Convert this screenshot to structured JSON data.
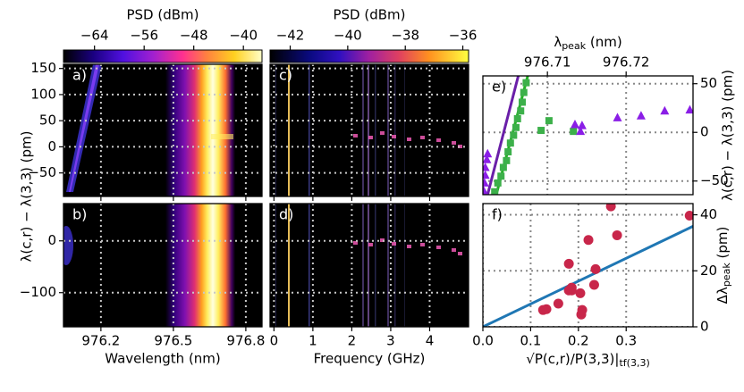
{
  "shared_ylabel": "λ(c,r) − λ(3,3) (pm)",
  "chart_data": [
    {
      "type": "heatmap",
      "panel": "a)",
      "xaxis": "none",
      "yaxis": "left",
      "colorbar": {
        "label": "PSD (dBm)",
        "lim": [
          -69,
          -37
        ],
        "ticks": [
          {
            "value": -64,
            "label": "−64"
          },
          {
            "value": -56,
            "label": "−56"
          },
          {
            "value": -48,
            "label": "−48"
          },
          {
            "value": -40,
            "label": "−40"
          }
        ]
      },
      "xlim": [
        976.045,
        976.867
      ],
      "xticks": [
        976.2,
        976.5,
        976.8
      ],
      "ylim": [
        -95,
        158
      ],
      "yticks": [
        {
          "value": -50,
          "label": "−50"
        },
        0,
        50,
        100,
        150
      ]
    },
    {
      "type": "heatmap",
      "panel": "b)",
      "xaxis": "bottom",
      "yaxis": "left",
      "xlabel": "Wavelength (nm)",
      "xlim": [
        976.045,
        976.867
      ],
      "xticks": [
        976.2,
        976.5,
        976.8
      ],
      "ylim": [
        -166,
        72
      ],
      "yticks": [
        {
          "value": -100,
          "label": "−100"
        },
        0
      ]
    },
    {
      "type": "heatmap",
      "panel": "c)",
      "xaxis": "none",
      "yaxis": "none",
      "colorbar": {
        "label": "PSD (dBm)",
        "lim": [
          -42.7,
          -35.8
        ],
        "ticks": [
          {
            "value": -42,
            "label": "−42"
          },
          {
            "value": -40,
            "label": "−40"
          },
          {
            "value": -38,
            "label": "−38"
          },
          {
            "value": -36,
            "label": "−36"
          }
        ]
      },
      "xlim": [
        -0.1,
        5.0
      ],
      "xticks": [
        0,
        1,
        2,
        3,
        4
      ],
      "ylim": [
        -95,
        158
      ],
      "yticks": [
        -50,
        0,
        50,
        100,
        150
      ]
    },
    {
      "type": "heatmap",
      "panel": "d)",
      "xaxis": "bottom",
      "yaxis": "none",
      "xlabel": "Frequency (GHz)",
      "xlim": [
        -0.1,
        5.0
      ],
      "xticks": [
        0,
        1,
        2,
        3,
        4
      ],
      "ylim": [
        -166,
        72
      ],
      "yticks": [
        -100,
        0
      ]
    },
    {
      "type": "scatter",
      "panel": "e)",
      "xaxis": "top",
      "yaxis": "right",
      "xlabel": {
        "main": "λ",
        "sub": "peak",
        "tail": " (nm)"
      },
      "ylabel": "λ(c,r) − λ(3,3) (pm)",
      "xlim": [
        976.7018,
        976.7285
      ],
      "xticks": [
        976.71,
        976.72
      ],
      "ylim": [
        -64,
        58
      ],
      "yticks": [
        {
          "value": -50,
          "label": "−50"
        },
        0,
        50
      ],
      "grid": true,
      "series": [
        {
          "marker": "line",
          "color": "#22b022",
          "x": [
            976.7035,
            976.7075
          ],
          "values": [
            -64,
            58
          ]
        },
        {
          "marker": "line",
          "color": "#6a1fa8",
          "x": [
            976.7024,
            976.7063
          ],
          "values": [
            -64,
            58
          ]
        },
        {
          "marker": "square",
          "color": "#3cb04a",
          "x": [
            976.7033,
            976.7037,
            976.7041,
            976.7044,
            976.7048,
            976.705,
            976.7053,
            976.7057,
            976.706,
            976.7062,
            976.7066,
            976.7068,
            976.707,
            976.7073,
            976.7092,
            976.7102,
            976.7133
          ],
          "values": [
            -61,
            -52,
            -45,
            -36,
            -29,
            -20,
            -11,
            -3,
            5,
            14,
            22,
            31,
            41,
            51,
            2,
            12,
            1
          ]
        },
        {
          "marker": "triangle",
          "color": "#8a1ee6",
          "x": [
            976.7019,
            976.702,
            976.7021,
            976.7021,
            976.7023,
            976.7024,
            976.7135,
            976.7142,
            976.7144,
            976.7189,
            976.7219,
            976.7249,
            976.7281
          ],
          "values": [
            -60,
            -52,
            -44,
            -36,
            -28,
            -22,
            8,
            1,
            7,
            15,
            17,
            22,
            23
          ]
        }
      ]
    },
    {
      "type": "scatter",
      "panel": "f)",
      "xaxis": "bottom",
      "yaxis": "right",
      "xlabel": {
        "main": "√P(c,r)/P(3,3)|",
        "sub": "tf(3,3)"
      },
      "ylabel": {
        "main": "Δλ",
        "sub": "peak",
        "tail": " (pm)"
      },
      "xlim": [
        0,
        0.44
      ],
      "xticks": [
        {
          "value": 0,
          "label": "0.0"
        },
        0.1,
        0.2,
        0.3
      ],
      "ylim": [
        0,
        44
      ],
      "yticks": [
        0,
        20,
        40
      ],
      "grid": true,
      "series": [
        {
          "marker": "line",
          "color": "#1f77b4",
          "x": [
            0,
            0.44
          ],
          "values": [
            0,
            35.9
          ]
        },
        {
          "marker": "circle",
          "color": "#c8264a",
          "x": [
            0.133,
            0.126,
            0.158,
            0.18,
            0.186,
            0.186,
            0.18,
            0.204,
            0.206,
            0.208,
            0.221,
            0.233,
            0.236,
            0.268,
            0.281,
            0.433
          ],
          "values": [
            6.3,
            6.0,
            8.3,
            13,
            14,
            13,
            22.5,
            12,
            4.4,
            6.0,
            31,
            15,
            20.6,
            43,
            32.7,
            39.7
          ]
        }
      ]
    }
  ]
}
